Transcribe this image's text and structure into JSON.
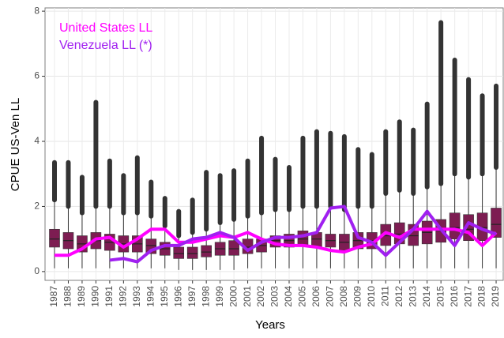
{
  "chart_data": {
    "type": "boxplot",
    "xlabel": "Years",
    "ylabel": "CPUE US-Ven LL",
    "categories": [
      "1987",
      "1988",
      "1989",
      "1990",
      "1991",
      "1992",
      "1993",
      "1994",
      "1995",
      "1996",
      "1997",
      "1998",
      "1999",
      "2000",
      "2001",
      "2002",
      "2003",
      "2004",
      "2005",
      "2006",
      "2007",
      "2008",
      "2009",
      "2010",
      "2011",
      "2012",
      "2013",
      "2014",
      "2015",
      "2016",
      "2017",
      "2018",
      "2019"
    ],
    "box_color": "#7d1d52",
    "outlier_color": "#333333",
    "lower": [
      0.1,
      0.1,
      0.1,
      0.1,
      0.1,
      0.1,
      0.1,
      0.1,
      0.1,
      0.05,
      0.05,
      0.05,
      0.05,
      0.05,
      0.1,
      0.1,
      0.1,
      0.1,
      0.1,
      0.1,
      0.1,
      0.1,
      0.1,
      0.1,
      0.1,
      0.1,
      0.1,
      0.1,
      0.1,
      0.1,
      0.1,
      0.1,
      0.1
    ],
    "q1": [
      0.75,
      0.7,
      0.6,
      0.7,
      0.65,
      0.6,
      0.6,
      0.55,
      0.5,
      0.4,
      0.4,
      0.45,
      0.5,
      0.5,
      0.55,
      0.6,
      0.75,
      0.75,
      0.8,
      0.75,
      0.75,
      0.65,
      0.7,
      0.7,
      0.8,
      0.85,
      0.8,
      0.85,
      0.9,
      1.0,
      0.95,
      0.95,
      1.05
    ],
    "median": [
      1.0,
      0.95,
      0.85,
      0.95,
      0.9,
      0.85,
      0.85,
      0.8,
      0.7,
      0.55,
      0.55,
      0.6,
      0.7,
      0.7,
      0.75,
      0.8,
      0.95,
      0.95,
      1.0,
      1.0,
      0.95,
      0.9,
      0.95,
      0.95,
      1.1,
      1.15,
      1.1,
      1.2,
      1.25,
      1.35,
      1.3,
      1.35,
      1.45
    ],
    "q3": [
      1.3,
      1.2,
      1.1,
      1.2,
      1.15,
      1.1,
      1.1,
      1.0,
      0.9,
      0.75,
      0.75,
      0.8,
      0.9,
      0.95,
      1.0,
      1.0,
      1.1,
      1.15,
      1.25,
      1.2,
      1.15,
      1.15,
      1.2,
      1.2,
      1.45,
      1.5,
      1.45,
      1.55,
      1.6,
      1.8,
      1.75,
      1.8,
      1.95
    ],
    "upper": [
      2.2,
      2.0,
      1.8,
      2.0,
      2.0,
      1.8,
      1.8,
      1.7,
      1.4,
      1.1,
      1.2,
      1.3,
      1.5,
      1.6,
      1.7,
      1.8,
      1.9,
      1.9,
      2.0,
      2.0,
      2.0,
      1.9,
      2.0,
      2.0,
      2.4,
      2.5,
      2.4,
      2.6,
      2.7,
      3.0,
      2.9,
      3.0,
      3.2
    ],
    "max": [
      3.35,
      3.35,
      2.9,
      5.2,
      3.4,
      2.95,
      3.5,
      2.75,
      2.25,
      1.85,
      2.2,
      3.05,
      2.95,
      3.1,
      3.4,
      4.1,
      3.45,
      3.2,
      4.1,
      4.3,
      4.25,
      4.15,
      3.75,
      3.6,
      4.3,
      4.6,
      4.35,
      5.15,
      7.65,
      6.5,
      5.9,
      5.4,
      5.7
    ],
    "series": [
      {
        "name": "United States LL",
        "color": "#ff00ff",
        "values": [
          0.5,
          0.5,
          0.7,
          1.0,
          1.05,
          0.75,
          1.0,
          1.3,
          1.3,
          0.9,
          0.9,
          1.0,
          1.1,
          1.05,
          1.2,
          1.0,
          0.85,
          0.8,
          0.8,
          0.75,
          0.65,
          0.6,
          0.75,
          0.85,
          1.2,
          1.05,
          1.3,
          1.3,
          1.3,
          1.3,
          1.2,
          0.8,
          1.2
        ]
      },
      {
        "name": "Venezuela LL (*)",
        "color": "#a020f0",
        "values": [
          null,
          null,
          null,
          null,
          0.35,
          0.4,
          0.3,
          0.65,
          0.8,
          0.8,
          1.0,
          1.05,
          1.2,
          1.05,
          0.65,
          0.9,
          1.05,
          1.05,
          1.1,
          1.2,
          1.95,
          2.0,
          1.05,
          0.9,
          0.5,
          0.9,
          1.3,
          1.85,
          1.3,
          0.8,
          1.5,
          1.3,
          1.15
        ]
      }
    ],
    "ylim": [
      -0.27,
      8.1
    ],
    "yticks": [
      0,
      2,
      4,
      6,
      8
    ],
    "grid": true
  }
}
